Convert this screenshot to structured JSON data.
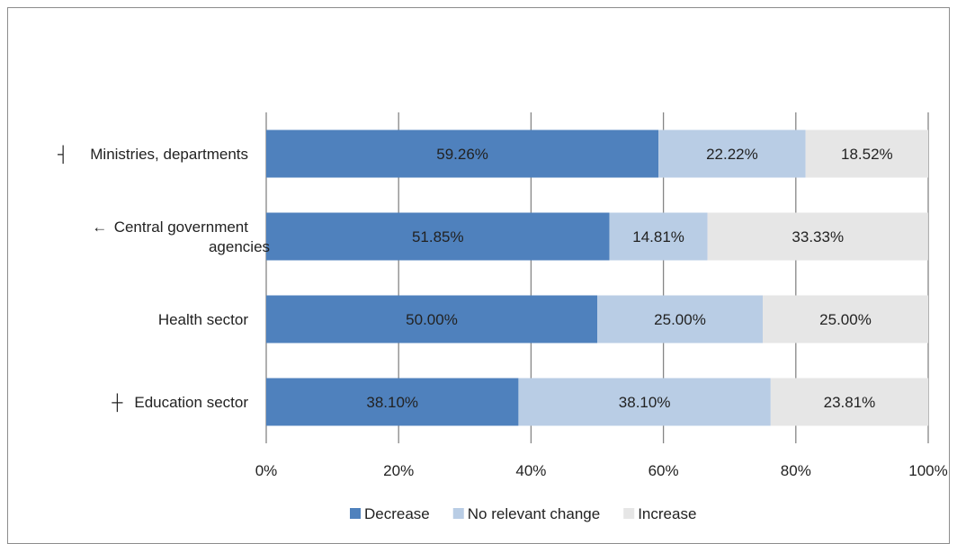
{
  "chart_data": {
    "type": "bar",
    "orientation": "horizontal",
    "stacked": "percent",
    "categories": [
      "Ministries, departments",
      "Central government agencies",
      "Health sector",
      "Education sector"
    ],
    "category_markers": [
      "┤",
      "←",
      "",
      "┼"
    ],
    "series": [
      {
        "name": "Decrease",
        "values": [
          59.26,
          51.85,
          50.0,
          38.1
        ],
        "labels": [
          "59.26%",
          "51.85%",
          "50.00%",
          "38.10%"
        ],
        "color": "#4f81bd"
      },
      {
        "name": "No relevant change",
        "values": [
          22.22,
          14.81,
          25.0,
          38.1
        ],
        "labels": [
          "22.22%",
          "14.81%",
          "25.00%",
          "38.10%"
        ],
        "color": "#b9cde5"
      },
      {
        "name": "Increase",
        "values": [
          18.52,
          33.33,
          25.0,
          23.81
        ],
        "labels": [
          "18.52%",
          "33.33%",
          "25.00%",
          "23.81%"
        ],
        "color": "#e6e6e6"
      }
    ],
    "x_ticks": [
      "0%",
      "20%",
      "40%",
      "60%",
      "80%",
      "100%"
    ],
    "xlim": [
      0,
      100
    ],
    "grid": true,
    "legend_position": "bottom"
  }
}
